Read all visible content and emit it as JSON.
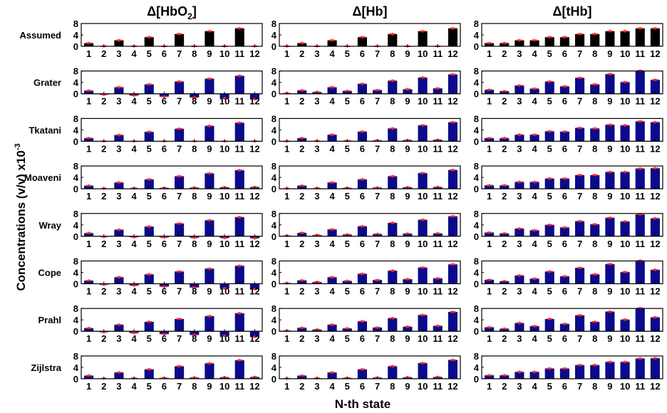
{
  "ylabel": "Concentrations (v/v) x10",
  "ylabel_exp": "-3",
  "xlabel": "N-th state",
  "colors": {
    "assumed_bar": "#000000",
    "bar": "#0a0a8c",
    "error_marker": "#ff2a2a",
    "axis": "#000000"
  },
  "chart_data": {
    "type": "bar",
    "layout": "grid of small-multiple bar charts, 8 rows x 3 columns",
    "columns": [
      {
        "key": "HbO2",
        "title_prefix": "Δ[HbO",
        "title_sub": "2",
        "title_suffix": "]"
      },
      {
        "key": "Hb",
        "title_prefix": "Δ[Hb]",
        "title_sub": "",
        "title_suffix": ""
      },
      {
        "key": "tHb",
        "title_prefix": "Δ[tHb]",
        "title_sub": "",
        "title_suffix": ""
      }
    ],
    "categories": [
      "1",
      "2",
      "3",
      "4",
      "5",
      "6",
      "7",
      "8",
      "9",
      "10",
      "11",
      "12"
    ],
    "ylim": [
      0,
      8
    ],
    "yticks": [
      "0",
      "4",
      "8"
    ],
    "rows": [
      {
        "label": "Assumed",
        "HbO2": [
          1.1,
          0,
          2.1,
          0,
          3.2,
          0,
          4.3,
          0,
          5.3,
          0,
          6.3,
          0
        ],
        "Hb": [
          0,
          1.1,
          0,
          2.1,
          0,
          3.2,
          0,
          4.3,
          0,
          5.3,
          0,
          6.3
        ],
        "tHb": [
          1.1,
          1.1,
          2.1,
          2.1,
          3.2,
          3.2,
          4.3,
          4.3,
          5.3,
          5.3,
          6.3,
          6.3
        ]
      },
      {
        "label": "Grater",
        "HbO2": [
          1.1,
          -0.3,
          2.3,
          -0.6,
          3.3,
          -1.0,
          4.3,
          -1.3,
          5.3,
          -1.6,
          6.3,
          -1.9
        ],
        "Hb": [
          0.2,
          1.2,
          0.6,
          2.3,
          1.0,
          3.5,
          1.3,
          4.6,
          1.6,
          5.7,
          1.9,
          6.8
        ],
        "tHb": [
          1.4,
          0.9,
          2.9,
          1.8,
          4.3,
          2.6,
          5.6,
          3.3,
          6.9,
          4.1,
          8.1,
          4.9
        ]
      },
      {
        "label": "Tkatani",
        "HbO2": [
          1.1,
          0,
          2.2,
          0,
          3.3,
          0,
          4.4,
          0,
          5.4,
          0,
          6.5,
          0
        ],
        "Hb": [
          0,
          1.1,
          0.1,
          2.3,
          0.2,
          3.4,
          0.3,
          4.5,
          0.4,
          5.6,
          0.5,
          6.7
        ],
        "tHb": [
          1.1,
          1.1,
          2.3,
          2.3,
          3.5,
          3.4,
          4.7,
          4.5,
          5.8,
          5.6,
          7.0,
          6.7
        ]
      },
      {
        "label": "Moaveni",
        "HbO2": [
          1.1,
          0.1,
          2.2,
          0.2,
          3.3,
          0.3,
          4.4,
          0.4,
          5.4,
          0.5,
          6.5,
          0.6
        ],
        "Hb": [
          0.1,
          1.1,
          0.2,
          2.2,
          0.3,
          3.3,
          0.4,
          4.4,
          0.5,
          5.5,
          0.6,
          6.6
        ],
        "tHb": [
          1.2,
          1.2,
          2.4,
          2.4,
          3.6,
          3.6,
          4.8,
          4.8,
          5.9,
          5.9,
          7.1,
          7.2
        ]
      },
      {
        "label": "Wray",
        "HbO2": [
          1.1,
          -0.2,
          2.3,
          -0.3,
          3.4,
          -0.4,
          4.5,
          -0.5,
          5.6,
          -0.6,
          6.7,
          -0.7
        ],
        "Hb": [
          0.2,
          1.2,
          0.4,
          2.4,
          0.6,
          3.5,
          0.8,
          4.7,
          0.9,
          5.8,
          1.0,
          7.0
        ],
        "tHb": [
          1.3,
          1.0,
          2.7,
          2.1,
          4.0,
          3.1,
          5.3,
          4.2,
          6.5,
          5.2,
          7.7,
          6.3
        ]
      },
      {
        "label": "Cope",
        "HbO2": [
          1.1,
          -0.3,
          2.3,
          -0.6,
          3.3,
          -1.0,
          4.3,
          -1.3,
          5.3,
          -1.6,
          6.3,
          -1.9
        ],
        "Hb": [
          0.2,
          1.2,
          0.6,
          2.3,
          1.0,
          3.5,
          1.3,
          4.6,
          1.6,
          5.7,
          1.9,
          6.8
        ],
        "tHb": [
          1.4,
          0.9,
          2.9,
          1.8,
          4.3,
          2.6,
          5.6,
          3.3,
          6.9,
          4.1,
          8.1,
          4.9
        ]
      },
      {
        "label": "Prahl",
        "HbO2": [
          1.1,
          -0.3,
          2.3,
          -0.6,
          3.3,
          -1.0,
          4.3,
          -1.3,
          5.3,
          -1.6,
          6.3,
          -1.9
        ],
        "Hb": [
          0.2,
          1.2,
          0.6,
          2.3,
          1.0,
          3.5,
          1.3,
          4.6,
          1.6,
          5.7,
          1.9,
          6.8
        ],
        "tHb": [
          1.4,
          0.9,
          2.9,
          1.8,
          4.3,
          2.6,
          5.6,
          3.3,
          6.9,
          4.1,
          8.1,
          4.9
        ]
      },
      {
        "label": "Zijlstra",
        "HbO2": [
          1.1,
          0.1,
          2.2,
          0.2,
          3.3,
          0.3,
          4.4,
          0.4,
          5.4,
          0.5,
          6.5,
          0.6
        ],
        "Hb": [
          0.1,
          1.1,
          0.2,
          2.2,
          0.3,
          3.3,
          0.4,
          4.4,
          0.5,
          5.5,
          0.6,
          6.6
        ],
        "tHb": [
          1.2,
          1.2,
          2.4,
          2.4,
          3.6,
          3.6,
          4.8,
          4.8,
          5.9,
          5.9,
          7.1,
          7.2
        ]
      }
    ]
  }
}
